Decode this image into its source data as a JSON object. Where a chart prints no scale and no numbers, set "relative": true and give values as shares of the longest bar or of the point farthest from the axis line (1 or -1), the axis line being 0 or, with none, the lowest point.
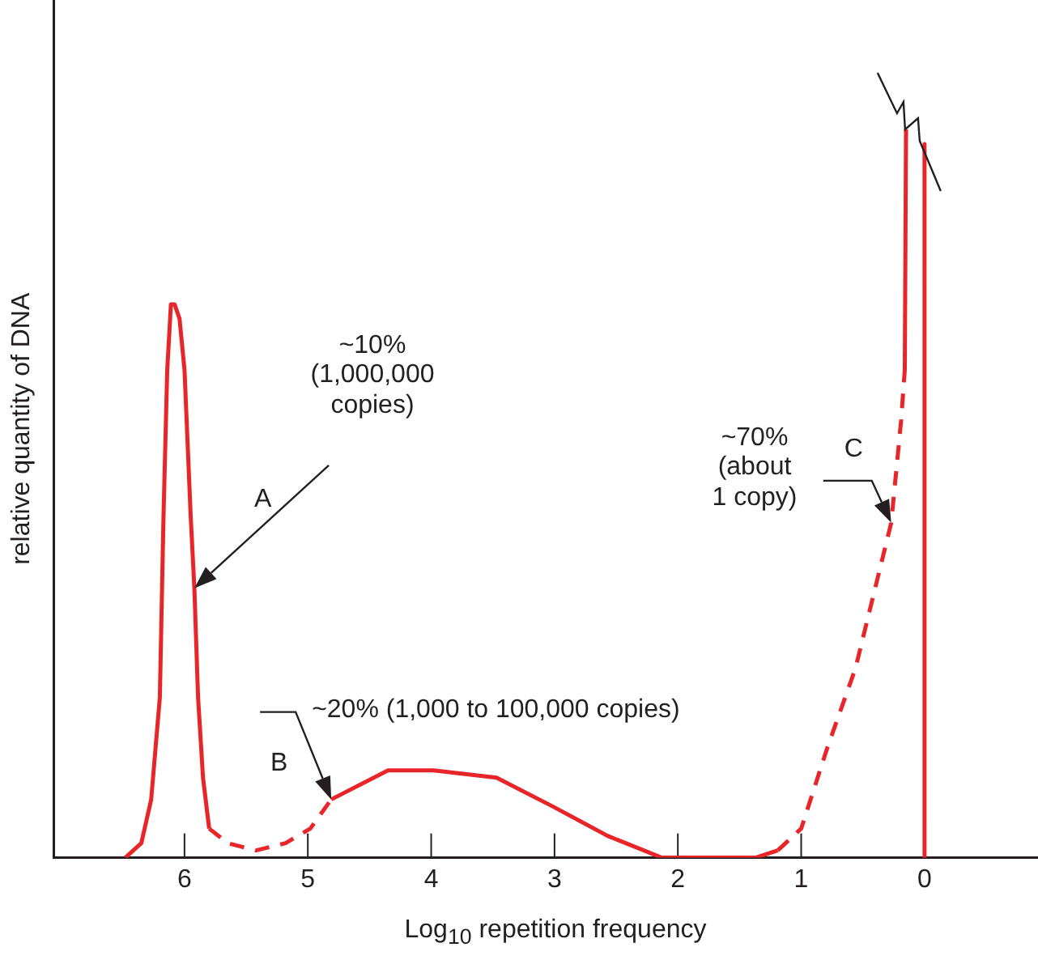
{
  "chart_data": {
    "type": "line",
    "relative": true,
    "xlabel": "Log$_{10}$ repetition frequency",
    "ylabel": "relative quantity of DNA",
    "xlim": [
      7.06,
      -0.92
    ],
    "xticks": [
      6,
      5,
      4,
      3,
      2,
      1,
      0
    ],
    "legend": false,
    "series": [
      {
        "color": "#e8262a",
        "line_style": "solid",
        "x": [
          6.48,
          6.35,
          6.27,
          6.2,
          6.17,
          6.14,
          6.11,
          6.08,
          6.04,
          6.0,
          5.95,
          5.92,
          5.89,
          5.85,
          5.8
        ],
        "values": [
          0,
          0.02,
          0.08,
          0.22,
          0.47,
          0.67,
          0.76,
          0.76,
          0.74,
          0.67,
          0.47,
          0.37,
          0.22,
          0.11,
          0.04
        ]
      },
      {
        "color": "#e8262a",
        "line_style": "dashed",
        "x": [
          5.8,
          5.65,
          5.42,
          5.18,
          4.98,
          4.81
        ],
        "values": [
          0.04,
          0.02,
          0.01,
          0.02,
          0.04,
          0.08
        ]
      },
      {
        "color": "#e8262a",
        "line_style": "solid",
        "x": [
          4.81,
          4.35,
          3.98,
          3.47,
          3.01,
          2.57,
          2.13,
          1.37,
          1.19
        ],
        "values": [
          0.08,
          0.12,
          0.12,
          0.11,
          0.07,
          0.03,
          0,
          0,
          0.01
        ]
      },
      {
        "color": "#e8262a",
        "line_style": "dashed",
        "x": [
          1.19,
          1.0,
          0.79,
          0.56,
          0.27,
          0.19,
          0.16
        ],
        "values": [
          0.01,
          0.04,
          0.15,
          0.26,
          0.46,
          0.6,
          0.67
        ]
      },
      {
        "color": "#e8262a",
        "line_style": "solid",
        "x": [
          0.16,
          0.15
        ],
        "values": [
          0.67,
          1
        ]
      },
      {
        "color": "#e8262a",
        "line_style": "solid",
        "x": [
          0,
          0
        ],
        "values": [
          0.98,
          0
        ]
      }
    ],
    "annotations": [
      "~10% (1,000,000 copies)",
      "A",
      {
        "text": "~20% (1,000 to 100,000 copies)",
        "x": 4.81,
        "y": 0.08
      },
      "B",
      "~70% (about 1 copy)",
      {
        "text": "C",
        "x": 0.27,
        "y": 0.46
      }
    ]
  }
}
